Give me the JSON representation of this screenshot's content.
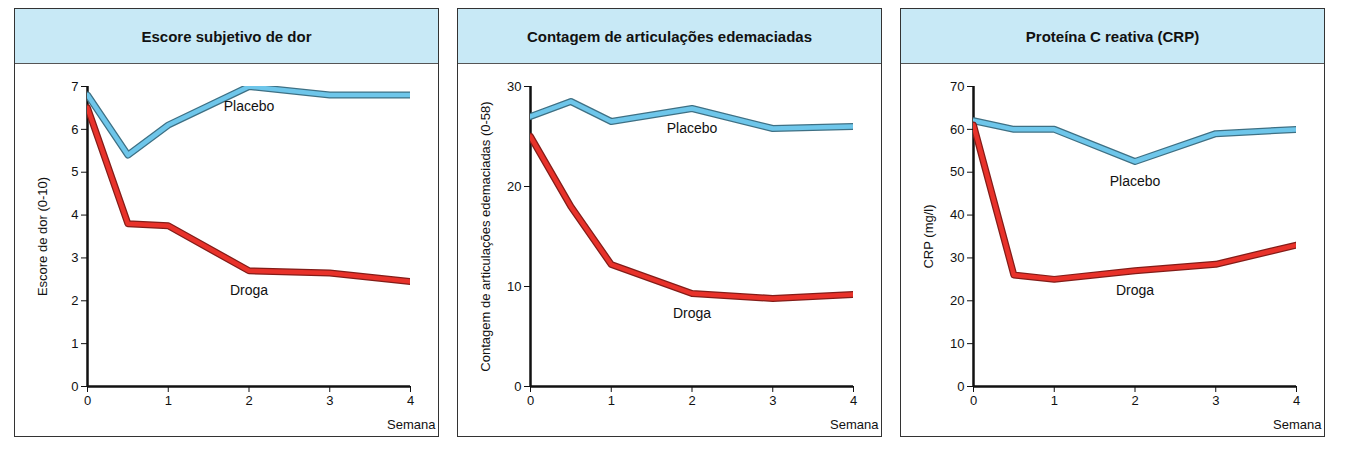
{
  "chart_data": [
    {
      "type": "line",
      "title": "Escore subjetivo de dor",
      "x_label": "Semana",
      "y_label": "Escore de dor (0-10)",
      "x": [
        0,
        0.5,
        1,
        2,
        3,
        4
      ],
      "series": [
        {
          "name": "Placebo",
          "color": "#6ec6ea",
          "values": [
            6.8,
            5.4,
            6.1,
            7.0,
            6.8,
            6.8
          ]
        },
        {
          "name": "Droga",
          "color": "#e8322a",
          "values": [
            6.5,
            3.8,
            3.75,
            2.7,
            2.65,
            2.45
          ]
        }
      ],
      "xlim": [
        0,
        4
      ],
      "xticks": [
        0,
        1,
        2,
        3,
        4
      ],
      "ylim": [
        0,
        7
      ],
      "yticks": [
        0,
        1,
        2,
        3,
        4,
        5,
        6,
        7
      ],
      "grid": false
    },
    {
      "type": "line",
      "title": "Contagem de articulações edemaciadas",
      "x_label": "Semana",
      "y_label": "Contagem de articulações edemaciadas (0-58)",
      "x": [
        0,
        0.5,
        1,
        2,
        3,
        4
      ],
      "series": [
        {
          "name": "Placebo",
          "color": "#6ec6ea",
          "values": [
            27,
            28.5,
            26.5,
            27.8,
            25.8,
            26
          ]
        },
        {
          "name": "Droga",
          "color": "#e8322a",
          "values": [
            25,
            18,
            12.2,
            9.3,
            8.8,
            9.2
          ]
        }
      ],
      "xlim": [
        0,
        4
      ],
      "xticks": [
        0,
        1,
        2,
        3,
        4
      ],
      "ylim": [
        0,
        30
      ],
      "yticks": [
        0,
        10,
        20,
        30
      ],
      "grid": false
    },
    {
      "type": "line",
      "title": "Proteína C reativa (CRP)",
      "x_label": "Semana",
      "y_label": "CRP (mg/l)",
      "x": [
        0,
        0.5,
        1,
        2,
        3,
        4
      ],
      "series": [
        {
          "name": "Placebo",
          "color": "#6ec6ea",
          "values": [
            62,
            60,
            60,
            52.5,
            59,
            60
          ]
        },
        {
          "name": "Droga",
          "color": "#e8322a",
          "values": [
            61,
            26,
            25,
            27,
            28.5,
            33
          ]
        }
      ],
      "xlim": [
        0,
        4
      ],
      "xticks": [
        0,
        1,
        2,
        3,
        4
      ],
      "ylim": [
        0,
        70
      ],
      "yticks": [
        0,
        10,
        20,
        30,
        40,
        50,
        60,
        70
      ],
      "grid": false
    }
  ]
}
